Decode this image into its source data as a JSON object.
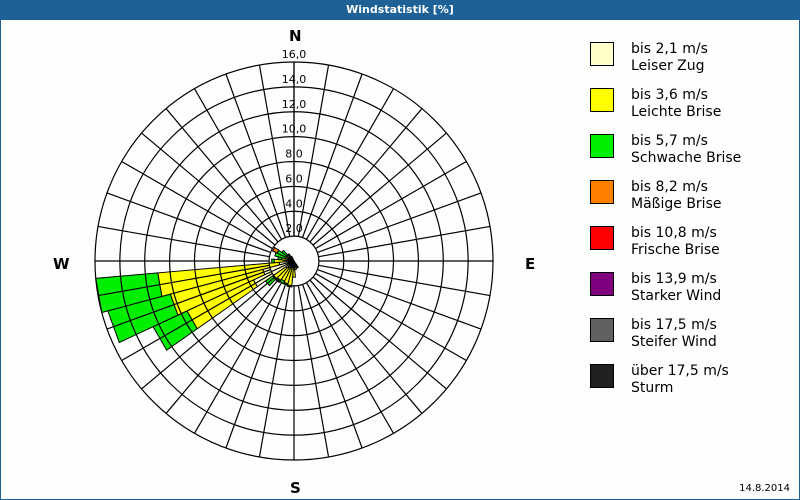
{
  "header": {
    "title": "Windstatistik [%]"
  },
  "compass": {
    "n": "N",
    "e": "E",
    "s": "S",
    "w": "W"
  },
  "footer": {
    "date": "14.8.2014"
  },
  "legend": [
    {
      "range": "bis 2,1 m/s",
      "name": "Leiser Zug",
      "color": "#ffffc8"
    },
    {
      "range": "bis 3,6 m/s",
      "name": "Leichte Brise",
      "color": "#ffff00"
    },
    {
      "range": "bis 5,7 m/s",
      "name": "Schwache Brise",
      "color": "#00ee00"
    },
    {
      "range": "bis 8,2 m/s",
      "name": "Mäßige Brise",
      "color": "#ff8000"
    },
    {
      "range": "bis 10,8 m/s",
      "name": "Frische Brise",
      "color": "#ff0000"
    },
    {
      "range": "bis 13,9 m/s",
      "name": "Starker Wind",
      "color": "#800080"
    },
    {
      "range": "bis 17,5 m/s",
      "name": "Steifer Wind",
      "color": "#606060"
    },
    {
      "range": "über 17,5 m/s",
      "name": "Sturm",
      "color": "#202020"
    }
  ],
  "chart_data": {
    "type": "polar-stacked-bar",
    "title": "Windstatistik [%]",
    "rmax": 16.0,
    "radial_ticks": [
      2.0,
      4.0,
      6.0,
      8.0,
      10.0,
      12.0,
      14.0,
      16.0
    ],
    "radial_tick_labels": [
      "2,0",
      "4,0",
      "6,0",
      "8,0",
      "10,0",
      "12,0",
      "14,0",
      "16,0"
    ],
    "sector_width_deg": 10,
    "series_names": [
      "Leiser Zug",
      "Leichte Brise",
      "Schwache Brise",
      "Mäßige Brise",
      "Frische Brise",
      "Starker Wind",
      "Steifer Wind",
      "Sturm"
    ],
    "sectors": [
      {
        "dir": 180,
        "values": [
          0.4,
          0.9,
          0,
          0,
          0,
          0,
          0,
          0
        ]
      },
      {
        "dir": 190,
        "values": [
          0.5,
          1.6,
          0,
          0,
          0,
          0,
          0,
          0
        ]
      },
      {
        "dir": 200,
        "values": [
          0.5,
          1.4,
          0.1,
          0,
          0,
          0,
          0,
          0
        ]
      },
      {
        "dir": 210,
        "values": [
          0.6,
          1.2,
          0.2,
          0,
          0,
          0,
          0,
          0
        ]
      },
      {
        "dir": 220,
        "values": [
          0.7,
          1.2,
          0.2,
          0,
          0,
          0,
          0,
          0
        ]
      },
      {
        "dir": 230,
        "values": [
          0.8,
          1.3,
          0.7,
          0,
          0,
          0,
          0,
          0
        ]
      },
      {
        "dir": 240,
        "values": [
          3.6,
          5.9,
          3.0,
          0,
          0,
          0,
          0,
          0
        ]
      },
      {
        "dir": 250,
        "values": [
          2.6,
          7.7,
          5.2,
          0,
          0,
          0,
          0,
          0
        ]
      },
      {
        "dir": 260,
        "values": [
          1.2,
          9.8,
          5.0,
          0,
          0,
          0,
          0,
          0
        ]
      },
      {
        "dir": 270,
        "values": [
          0.8,
          0.8,
          0.2,
          0,
          0,
          0,
          0,
          0
        ]
      },
      {
        "dir": 280,
        "values": [
          0.5,
          0.5,
          0.3,
          0,
          0,
          0,
          0,
          0
        ]
      },
      {
        "dir": 290,
        "values": [
          0.3,
          0.4,
          0.9,
          0,
          0,
          0,
          0,
          0
        ]
      },
      {
        "dir": 300,
        "values": [
          0.3,
          0.4,
          0.8,
          0.4,
          0,
          0,
          0,
          0
        ]
      },
      {
        "dir": 310,
        "values": [
          0.3,
          0.4,
          0.5,
          0,
          0,
          0,
          0,
          0
        ]
      },
      {
        "dir": 320,
        "values": [
          0.2,
          0.3,
          0.2,
          0,
          0,
          0,
          0,
          0
        ]
      },
      {
        "dir": 330,
        "values": [
          0.2,
          0.2,
          0,
          0,
          0,
          0,
          0,
          0
        ]
      },
      {
        "dir": 150,
        "values": [
          0.3,
          0.3,
          0,
          0,
          0,
          0,
          0,
          0
        ]
      },
      {
        "dir": 160,
        "values": [
          0.3,
          0.3,
          0,
          0,
          0,
          0,
          0,
          0
        ]
      },
      {
        "dir": 170,
        "values": [
          0.3,
          0.4,
          0,
          0,
          0,
          0,
          0,
          0
        ]
      }
    ]
  }
}
